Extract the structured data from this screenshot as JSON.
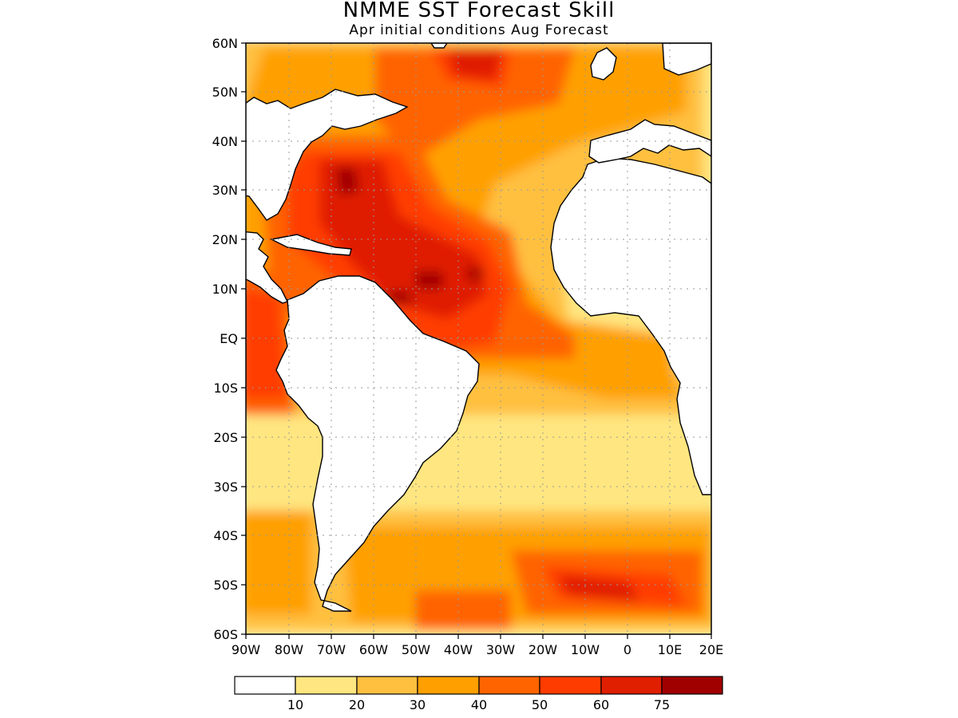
{
  "title": "NMME SST Forecast Skill",
  "subtitle": "Apr initial conditions  Aug Forecast",
  "map": {
    "lat_labels": [
      "60N",
      "50N",
      "40N",
      "30N",
      "20N",
      "10N",
      "EQ",
      "10S",
      "20S",
      "30S",
      "40S",
      "50S",
      "60S"
    ],
    "lon_labels": [
      "90W",
      "80W",
      "70W",
      "60W",
      "50W",
      "40W",
      "30W",
      "20W",
      "10W",
      "0",
      "10E",
      "20E"
    ],
    "lon_range": [
      -90,
      20
    ],
    "lat_range": [
      -60,
      60
    ],
    "grid": "dotted"
  },
  "colorbar": {
    "labels": [
      "10",
      "20",
      "30",
      "40",
      "50",
      "60",
      "75"
    ],
    "colors": [
      "#ffffff",
      "#ffe680",
      "#ffc040",
      "#ffa000",
      "#ff6400",
      "#ff3c00",
      "#e01e00",
      "#a00000"
    ]
  }
}
